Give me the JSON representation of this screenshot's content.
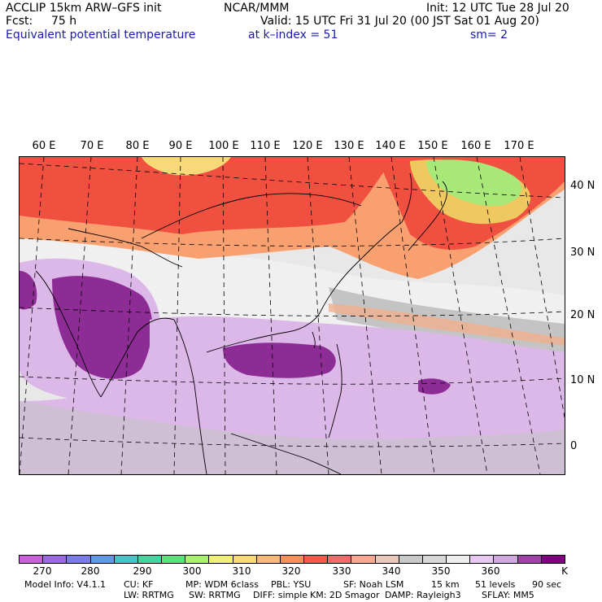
{
  "header": {
    "model": "ACCLIP 15km ARW–GFS init",
    "center": "NCAR/MMM",
    "init": "Init: 12 UTC Tue 28 Jul 20",
    "fcst_label": "Fcst:",
    "fcst_value": "75 h",
    "valid": "Valid: 15 UTC Fri 31 Jul 20 (00 JST Sat 01 Aug 20)",
    "field": "Equivalent potential temperature",
    "level": "at k–index =  51",
    "smooth": "sm= 2"
  },
  "map": {
    "lon_labels": [
      "60 E",
      "70 E",
      "80 E",
      "90 E",
      "100 E",
      "110 E",
      "120 E",
      "130 E",
      "140 E",
      "150 E",
      "160 E",
      "170 E"
    ],
    "lat_labels": [
      "40 N",
      "30 N",
      "20 N",
      "10 N",
      "0"
    ]
  },
  "colorbar": {
    "colors": [
      "#c860d8",
      "#9c6ae0",
      "#7c7ce8",
      "#5c9ae8",
      "#3cc8c8",
      "#3cd8a0",
      "#50e878",
      "#a8f070",
      "#f0f078",
      "#f8d878",
      "#f8b878",
      "#f89058",
      "#f85848",
      "#f86868",
      "#f8a890",
      "#e8c8b8",
      "#c8c8c8",
      "#d8d8d8",
      "#eeeeee",
      "#e8c8f0",
      "#d0a8e0",
      "#a040a8",
      "#800080"
    ],
    "labels": [
      "270",
      "280",
      "290",
      "300",
      "310",
      "320",
      "330",
      "340",
      "350",
      "360"
    ],
    "unit": "K"
  },
  "model_info": {
    "line1": [
      "Model Info: V4.1.1",
      "CU: KF",
      "MP: WDM 6class",
      "PBL: YSU",
      "SF: Noah LSM",
      "15 km",
      "51 levels",
      "90 sec"
    ],
    "line2": [
      "LW: RRTMG",
      "SW: RRTMG",
      "DIFF: simple",
      "KM: 2D Smagor",
      "DAMP: Rayleigh3",
      "SFLAY: MM5"
    ]
  },
  "colors": {
    "hot": "#f05040",
    "warm": "#f8a070",
    "moist_purple": "#8c2c94",
    "light_purple": "#dcb8e8",
    "gray": "#c4c4c4"
  }
}
